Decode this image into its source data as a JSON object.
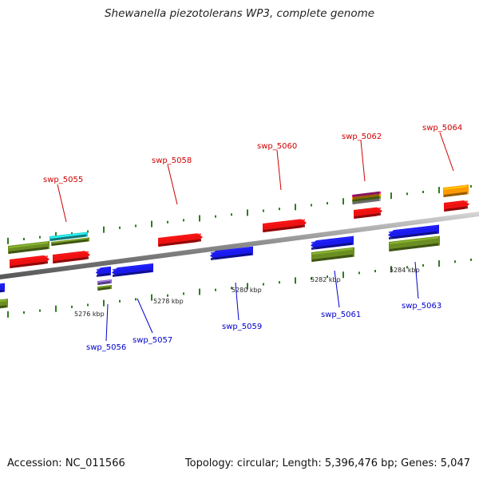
{
  "title": "Shewanella piezotolerans WP3, complete genome",
  "footer": {
    "accession": "Accession: NC_011566",
    "summary": "Topology: circular; Length: 5,396,476 bp; Genes: 5,047"
  },
  "colors": {
    "axis": "#8a8a8a",
    "tick": "#2e7d1e",
    "forward_label": "#cc0000",
    "reverse_label": "#0000cc",
    "cds_red": "#ee1111",
    "cds_blue": "#1a1aee",
    "gene_olive": "#6b8e23",
    "cyan": "#22cccc",
    "orange": "#ff9900",
    "purple": "#8866cc",
    "magenta": "#dd2299"
  },
  "kbp_labels": [
    "5276 kbp",
    "5278 kbp",
    "5280 kbp",
    "5282 kbp",
    "5284 kbp"
  ],
  "gene_labels": [
    {
      "text": "swp_5055",
      "strand": "forward"
    },
    {
      "text": "swp_5056",
      "strand": "reverse"
    },
    {
      "text": "swp_5057",
      "strand": "reverse"
    },
    {
      "text": "swp_5058",
      "strand": "forward"
    },
    {
      "text": "swp_5059",
      "strand": "reverse"
    },
    {
      "text": "swp_5060",
      "strand": "forward"
    },
    {
      "text": "swp_5061",
      "strand": "reverse"
    },
    {
      "text": "swp_5062",
      "strand": "forward"
    },
    {
      "text": "swp_5063",
      "strand": "reverse"
    },
    {
      "text": "swp_5064",
      "strand": "forward"
    }
  ]
}
